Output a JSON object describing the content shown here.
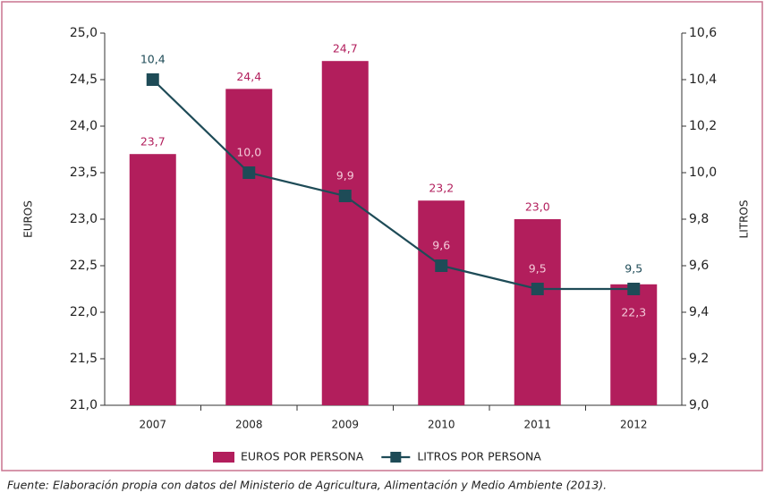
{
  "chart_data": {
    "type": "bar",
    "categories": [
      "2007",
      "2008",
      "2009",
      "2010",
      "2011",
      "2012"
    ],
    "series": [
      {
        "name": "EUROS POR PERSONA",
        "type": "bar",
        "color": "#b21e5c",
        "values": [
          23.7,
          24.4,
          24.7,
          23.2,
          23.0,
          22.3
        ],
        "value_labels": [
          "23,7",
          "24,4",
          "24,7",
          "23,2",
          "23,0",
          "22,3"
        ]
      },
      {
        "name": "LITROS POR PERSONA",
        "type": "line",
        "axis": "y2",
        "color": "#1e4b57",
        "values": [
          10.4,
          10.0,
          9.9,
          9.6,
          9.5,
          9.5
        ],
        "value_labels": [
          "10,4",
          "10,0",
          "9,9",
          "9,6",
          "9,5",
          "9,5"
        ]
      }
    ],
    "ylabel": "EUROS",
    "y2label": "LITROS",
    "ylim": [
      21.0,
      25.0
    ],
    "yticks": [
      {
        "value": 21.0,
        "label": "21,0"
      },
      {
        "value": 21.5,
        "label": "21,5"
      },
      {
        "value": 22.0,
        "label": "22,0"
      },
      {
        "value": 22.5,
        "label": "22,5"
      },
      {
        "value": 23.0,
        "label": "23,0"
      },
      {
        "value": 23.5,
        "label": "23,5"
      },
      {
        "value": 24.0,
        "label": "24,0"
      },
      {
        "value": 24.5,
        "label": "24,5"
      },
      {
        "value": 25.0,
        "label": "25,0"
      }
    ],
    "y2lim": [
      9.0,
      10.6
    ],
    "y2ticks": [
      {
        "value": 9.0,
        "label": "9,0"
      },
      {
        "value": 9.2,
        "label": "9,2"
      },
      {
        "value": 9.4,
        "label": "9,4"
      },
      {
        "value": 9.6,
        "label": "9,6"
      },
      {
        "value": 9.8,
        "label": "9,8"
      },
      {
        "value": 10.0,
        "label": "10,0"
      },
      {
        "value": 10.2,
        "label": "10,2"
      },
      {
        "value": 10.4,
        "label": "10,4"
      },
      {
        "value": 10.6,
        "label": "10,6"
      }
    ],
    "source": "Fuente: Elaboración propia con datos del Ministerio de Agricultura, Alimentación y Medio Ambiente (2013)."
  }
}
